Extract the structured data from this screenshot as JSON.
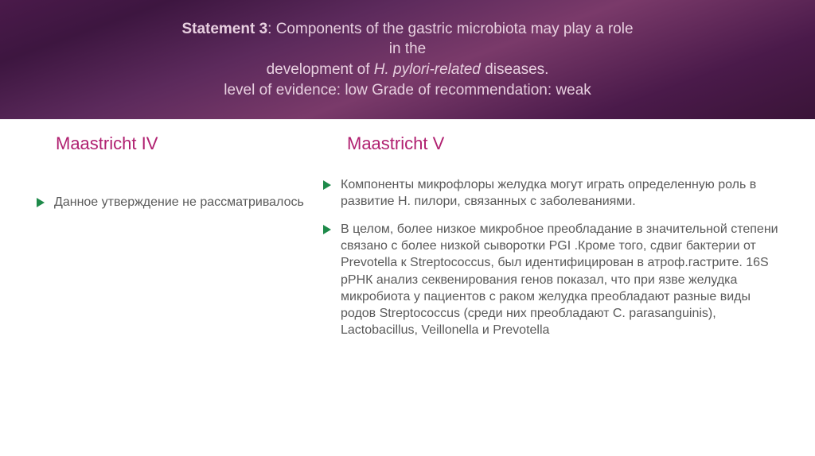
{
  "header": {
    "statement_label": "Statement 3",
    "line1_rest": ": Components of the gastric microbiota may play a role",
    "line2": "in the",
    "line3_pre": "development of ",
    "line3_italic": "H. pylori-related",
    "line3_post": " diseases.",
    "line4": "level of evidence: low Grade of recommendation: weak"
  },
  "left": {
    "heading": "Maastricht IV",
    "bullets": [
      "Данное утверждение не рассматривалось"
    ]
  },
  "right": {
    "heading": "Maastricht V",
    "bullets": [
      "Компоненты микрофлоры желудка могут играть определенную роль в развитие Н. пилори, связанных с заболеваниями.",
      " В целом, более низкое микробное преобладание в значительной степени связано с более низкой сыворотки PGI .Кроме того, сдвиг бактерии от Prevotella к Streptococcus, был идентифицирован в атроф.гастрите. 16S рРНК анализ секвенирования генов показал, что при язве желудка микробиота у пациентов с раком желудка преобладают разные виды родов Streptococcus (среди них преобладают C. parasanguinis), Lactobacillus, Veillonella и Prevotella"
    ]
  },
  "colors": {
    "heading": "#b02070",
    "bullet_marker": "#1e8a4a",
    "body_text": "#595959",
    "header_text": "#e8d0e0"
  },
  "typography": {
    "header_fontsize": 19,
    "heading_fontsize": 22,
    "body_fontsize": 16
  }
}
